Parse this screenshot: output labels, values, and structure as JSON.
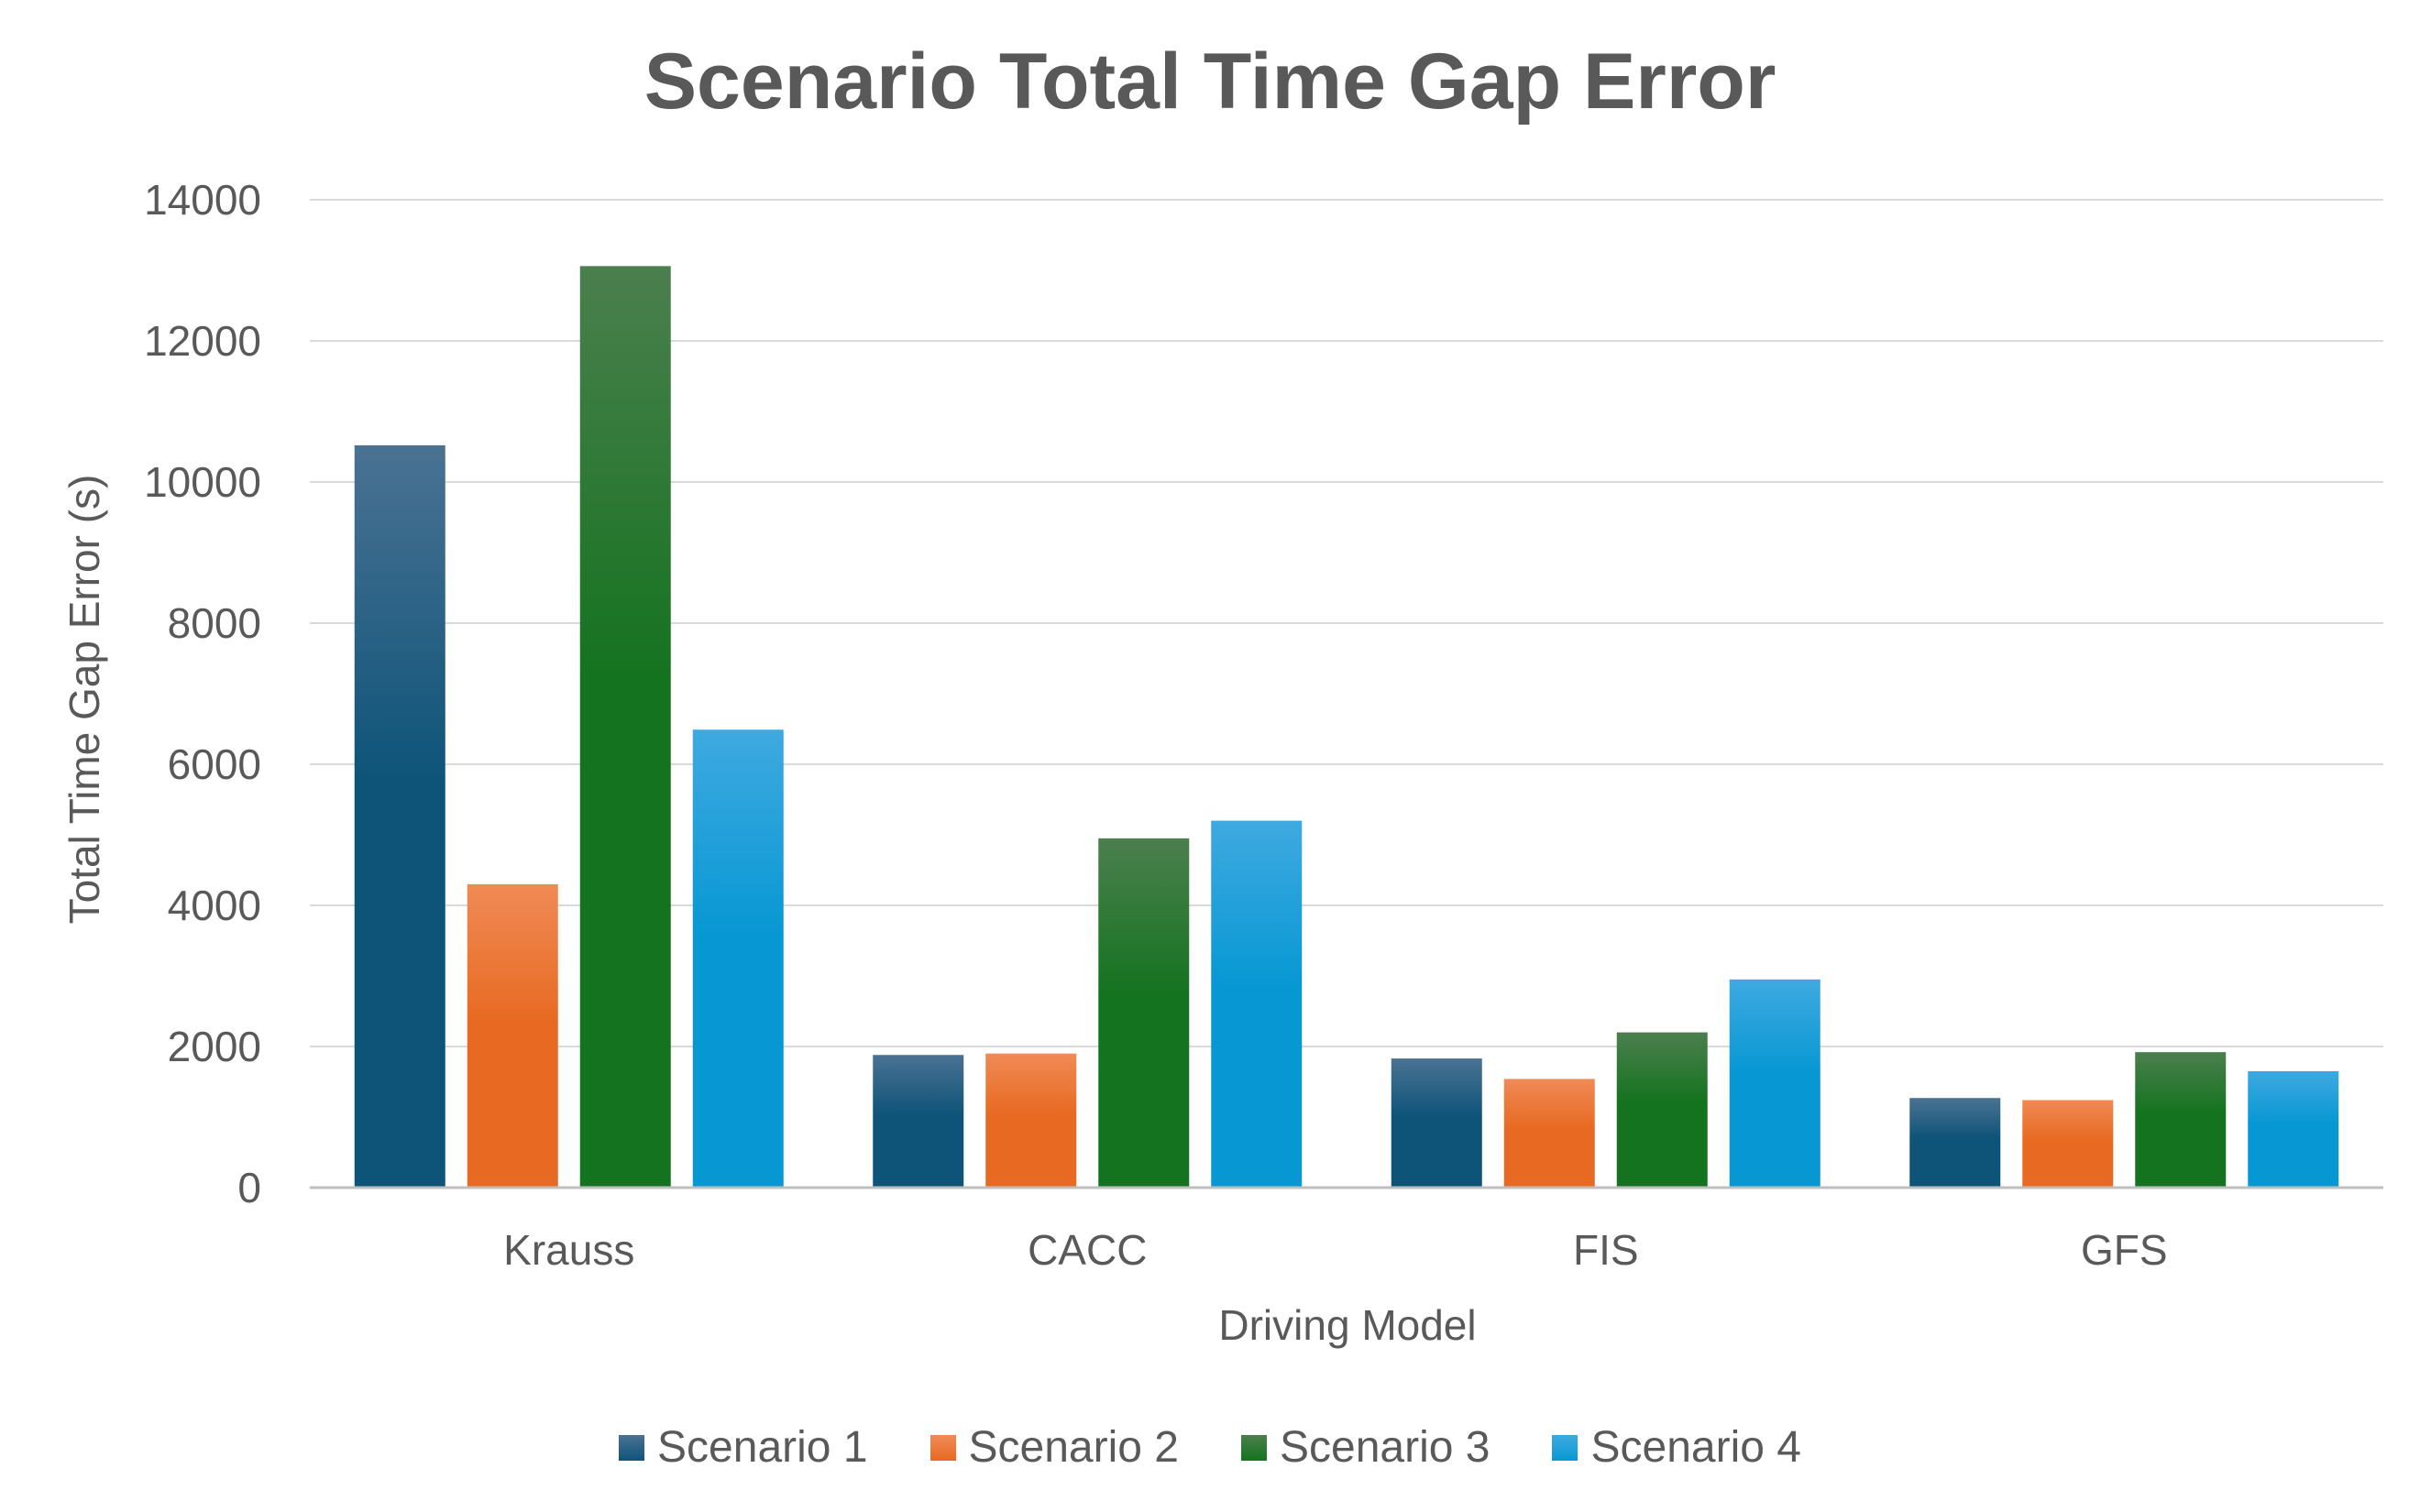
{
  "chart_data": {
    "type": "bar",
    "title": "Scenario Total Time Gap Error",
    "xlabel": "Driving Model",
    "ylabel": "Total Time Gap Error (s)",
    "categories": [
      "Krauss",
      "CACC",
      "FIS",
      "GFS"
    ],
    "ylim": [
      0,
      14000
    ],
    "yticks": [
      0,
      2000,
      4000,
      6000,
      8000,
      10000,
      12000,
      14000
    ],
    "grid": true,
    "legend": "bottom",
    "series": [
      {
        "name": "Scenario 1",
        "values": [
          10520,
          1880,
          1830,
          1270
        ],
        "color_top": "#4a7293",
        "color_bottom": "#0e5479"
      },
      {
        "name": "Scenario 2",
        "values": [
          4300,
          1900,
          1540,
          1240
        ],
        "color_top": "#f08a56",
        "color_bottom": "#e86a22"
      },
      {
        "name": "Scenario 3",
        "values": [
          13060,
          4950,
          2200,
          1920
        ],
        "color_top": "#4b7f4e",
        "color_bottom": "#14731f"
      },
      {
        "name": "Scenario 4",
        "values": [
          6490,
          5200,
          2950,
          1650
        ],
        "color_top": "#3fa9e1",
        "color_bottom": "#0798d3"
      }
    ]
  }
}
